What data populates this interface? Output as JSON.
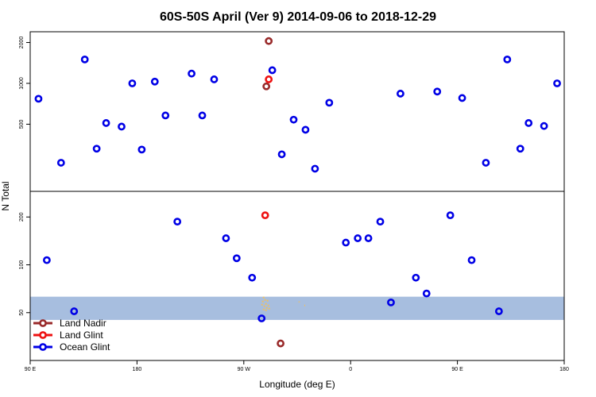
{
  "chart_data": {
    "type": "scatter",
    "title": "60S-50S April (Ver 9)   2014-09-06 to 2018-12-29",
    "xlabel": "Longitude (deg E)",
    "ylabel": "N Total",
    "x_tick_labels": [
      "90 E",
      "180",
      "90 W",
      "0",
      "90 E",
      "180"
    ],
    "x_ticks": [
      90,
      180,
      270,
      360,
      450,
      540
    ],
    "xlim": [
      90,
      540
    ],
    "upper_panel": {
      "scale": "log",
      "ylim": [
        160,
        2400
      ],
      "yticks": [
        500,
        1000,
        2000
      ],
      "ytick_labels": [
        "500",
        "1000",
        "2000"
      ]
    },
    "lower_panel": {
      "scale": "log",
      "ylim": [
        25,
        290
      ],
      "yticks": [
        50,
        100,
        200
      ],
      "ytick_labels": [
        "50",
        "100",
        "200"
      ],
      "band": {
        "from": 45,
        "to": 63,
        "color": "#a7bedf"
      }
    },
    "legend": {
      "position": "bottom-left",
      "entries": [
        {
          "name": "Land Nadir",
          "color": "#992a2a"
        },
        {
          "name": "Land Glint",
          "color": "#ee1111"
        },
        {
          "name": "Ocean Glint",
          "color": "#0000e6"
        }
      ]
    },
    "series": [
      {
        "name": "Land Nadir",
        "color": "#992a2a",
        "points": [
          {
            "x": 291,
            "y": 2050,
            "panel": "upper"
          },
          {
            "x": 289,
            "y": 950,
            "panel": "upper"
          },
          {
            "x": 301,
            "y": 32,
            "panel": "lower"
          }
        ]
      },
      {
        "name": "Land Glint",
        "color": "#ee1111",
        "points": [
          {
            "x": 291,
            "y": 1070,
            "panel": "upper"
          },
          {
            "x": 288,
            "y": 205,
            "panel": "lower"
          }
        ]
      },
      {
        "name": "Ocean Glint",
        "color": "#0000e6",
        "points": [
          {
            "x": 97,
            "y": 770,
            "panel": "upper"
          },
          {
            "x": 116,
            "y": 260,
            "panel": "upper"
          },
          {
            "x": 136,
            "y": 1500,
            "panel": "upper"
          },
          {
            "x": 146,
            "y": 330,
            "panel": "upper"
          },
          {
            "x": 154,
            "y": 510,
            "panel": "upper"
          },
          {
            "x": 167,
            "y": 480,
            "panel": "upper"
          },
          {
            "x": 176,
            "y": 1000,
            "panel": "upper"
          },
          {
            "x": 184,
            "y": 325,
            "panel": "upper"
          },
          {
            "x": 195,
            "y": 1030,
            "panel": "upper"
          },
          {
            "x": 204,
            "y": 580,
            "panel": "upper"
          },
          {
            "x": 226,
            "y": 1180,
            "panel": "upper"
          },
          {
            "x": 235,
            "y": 580,
            "panel": "upper"
          },
          {
            "x": 245,
            "y": 1070,
            "panel": "upper"
          },
          {
            "x": 294,
            "y": 1250,
            "panel": "upper"
          },
          {
            "x": 302,
            "y": 300,
            "panel": "upper"
          },
          {
            "x": 312,
            "y": 540,
            "panel": "upper"
          },
          {
            "x": 322,
            "y": 455,
            "panel": "upper"
          },
          {
            "x": 330,
            "y": 235,
            "panel": "upper"
          },
          {
            "x": 342,
            "y": 720,
            "panel": "upper"
          },
          {
            "x": 402,
            "y": 840,
            "panel": "upper"
          },
          {
            "x": 433,
            "y": 870,
            "panel": "upper"
          },
          {
            "x": 454,
            "y": 780,
            "panel": "upper"
          },
          {
            "x": 474,
            "y": 260,
            "panel": "upper"
          },
          {
            "x": 492,
            "y": 1500,
            "panel": "upper"
          },
          {
            "x": 503,
            "y": 330,
            "panel": "upper"
          },
          {
            "x": 510,
            "y": 510,
            "panel": "upper"
          },
          {
            "x": 523,
            "y": 485,
            "panel": "upper"
          },
          {
            "x": 534,
            "y": 1000,
            "panel": "upper"
          },
          {
            "x": 104,
            "y": 107,
            "panel": "lower"
          },
          {
            "x": 127,
            "y": 51,
            "panel": "lower"
          },
          {
            "x": 214,
            "y": 187,
            "panel": "lower"
          },
          {
            "x": 255,
            "y": 147,
            "panel": "lower"
          },
          {
            "x": 264,
            "y": 110,
            "panel": "lower"
          },
          {
            "x": 277,
            "y": 83,
            "panel": "lower"
          },
          {
            "x": 285,
            "y": 46,
            "panel": "lower"
          },
          {
            "x": 356,
            "y": 138,
            "panel": "lower"
          },
          {
            "x": 366,
            "y": 147,
            "panel": "lower"
          },
          {
            "x": 375,
            "y": 147,
            "panel": "lower"
          },
          {
            "x": 385,
            "y": 187,
            "panel": "lower"
          },
          {
            "x": 394,
            "y": 58,
            "panel": "lower"
          },
          {
            "x": 415,
            "y": 83,
            "panel": "lower"
          },
          {
            "x": 424,
            "y": 66,
            "panel": "lower"
          },
          {
            "x": 444,
            "y": 205,
            "panel": "lower"
          },
          {
            "x": 462,
            "y": 107,
            "panel": "lower"
          },
          {
            "x": 485,
            "y": 51,
            "panel": "lower"
          }
        ]
      }
    ]
  }
}
